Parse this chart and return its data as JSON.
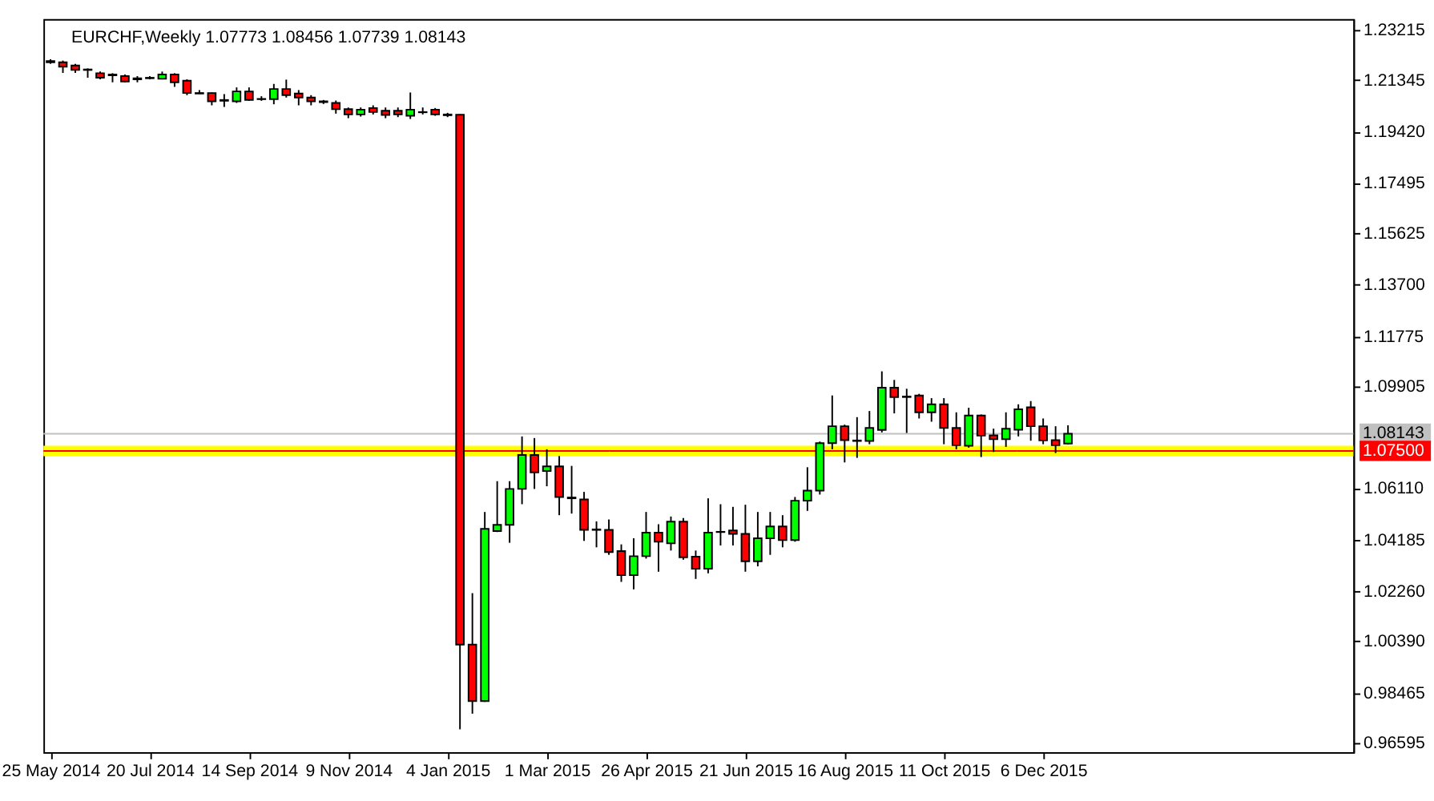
{
  "chart_data": {
    "type": "candlestick",
    "title": "EURCHF,Weekly  1.07773 1.08456 1.07739 1.08143",
    "x": [
      "2014-05-25",
      "2014-06-01",
      "2014-06-08",
      "2014-06-15",
      "2014-06-22",
      "2014-06-29",
      "2014-07-06",
      "2014-07-13",
      "2014-07-20",
      "2014-07-27",
      "2014-08-03",
      "2014-08-10",
      "2014-08-17",
      "2014-08-24",
      "2014-08-31",
      "2014-09-07",
      "2014-09-14",
      "2014-09-21",
      "2014-09-28",
      "2014-10-05",
      "2014-10-12",
      "2014-10-19",
      "2014-10-26",
      "2014-11-02",
      "2014-11-09",
      "2014-11-16",
      "2014-11-23",
      "2014-11-30",
      "2014-12-07",
      "2014-12-14",
      "2014-12-21",
      "2014-12-28",
      "2015-01-04",
      "2015-01-11",
      "2015-01-18",
      "2015-01-25",
      "2015-02-01",
      "2015-02-08",
      "2015-02-15",
      "2015-02-22",
      "2015-03-01",
      "2015-03-08",
      "2015-03-15",
      "2015-03-22",
      "2015-03-29",
      "2015-04-05",
      "2015-04-12",
      "2015-04-19",
      "2015-04-26",
      "2015-05-03",
      "2015-05-10",
      "2015-05-17",
      "2015-05-24",
      "2015-05-31",
      "2015-06-07",
      "2015-06-14",
      "2015-06-21",
      "2015-06-28",
      "2015-07-05",
      "2015-07-12",
      "2015-07-19",
      "2015-07-26",
      "2015-08-02",
      "2015-08-09",
      "2015-08-16",
      "2015-08-23",
      "2015-08-30",
      "2015-09-06",
      "2015-09-13",
      "2015-09-20",
      "2015-09-27",
      "2015-10-04",
      "2015-10-11",
      "2015-10-18",
      "2015-10-25",
      "2015-11-01",
      "2015-11-08",
      "2015-11-15",
      "2015-11-22",
      "2015-11-29",
      "2015-12-06",
      "2015-12-13",
      "2015-12-20"
    ],
    "ohlc": [
      [
        1.2205,
        1.2212,
        1.2195,
        1.2201
      ],
      [
        1.2201,
        1.2207,
        1.2161,
        1.2184
      ],
      [
        1.2189,
        1.2195,
        1.2161,
        1.2172
      ],
      [
        1.2174,
        1.2178,
        1.2143,
        1.2172
      ],
      [
        1.216,
        1.2166,
        1.2137,
        1.2143
      ],
      [
        1.2155,
        1.216,
        1.2126,
        1.2152
      ],
      [
        1.2149,
        1.2155,
        1.2126,
        1.2129
      ],
      [
        1.2141,
        1.2149,
        1.2126,
        1.2137
      ],
      [
        1.2141,
        1.2149,
        1.2137,
        1.2143
      ],
      [
        1.2139,
        1.2166,
        1.2137,
        1.2155
      ],
      [
        1.2155,
        1.216,
        1.2109,
        1.2126
      ],
      [
        1.2132,
        1.2137,
        1.2078,
        1.2086
      ],
      [
        1.2086,
        1.2097,
        1.2083,
        1.2084
      ],
      [
        1.2086,
        1.2088,
        1.204,
        1.2055
      ],
      [
        1.206,
        1.2082,
        1.2034,
        1.2057
      ],
      [
        1.2055,
        1.2107,
        1.2049,
        1.2092
      ],
      [
        1.2092,
        1.2107,
        1.2057,
        1.206
      ],
      [
        1.2064,
        1.2074,
        1.2057,
        1.2063
      ],
      [
        1.2063,
        1.212,
        1.2044,
        1.2101
      ],
      [
        1.2101,
        1.2136,
        1.2069,
        1.2078
      ],
      [
        1.2084,
        1.2097,
        1.204,
        1.2069
      ],
      [
        1.2069,
        1.2078,
        1.204,
        1.2055
      ],
      [
        1.2055,
        1.206,
        1.2045,
        1.2052
      ],
      [
        1.2049,
        1.2058,
        1.2009,
        1.2026
      ],
      [
        1.2026,
        1.2032,
        1.1992,
        1.2006
      ],
      [
        1.2006,
        1.2032,
        1.1998,
        1.2024
      ],
      [
        1.203,
        1.204,
        1.2006,
        1.2015
      ],
      [
        1.202,
        1.2032,
        1.1992,
        1.2004
      ],
      [
        1.202,
        1.2032,
        1.1996,
        1.2006
      ],
      [
        1.2001,
        1.2088,
        1.1989,
        1.2024
      ],
      [
        1.2015,
        1.2032,
        1.2006,
        1.2014
      ],
      [
        1.2024,
        1.203,
        1.2001,
        1.2006
      ],
      [
        1.2006,
        1.2012,
        1.1996,
        1.2003
      ],
      [
        1.2005,
        1.2007,
        0.9711,
        1.0027
      ],
      [
        1.0027,
        1.0219,
        0.9769,
        0.9816
      ],
      [
        0.9816,
        1.0522,
        0.9813,
        1.0459
      ],
      [
        1.0451,
        1.0637,
        1.0447,
        1.0474
      ],
      [
        1.0474,
        1.0637,
        1.0407,
        1.0608
      ],
      [
        1.0608,
        1.0804,
        1.0551,
        1.0735
      ],
      [
        1.0735,
        1.0798,
        1.0608,
        1.067
      ],
      [
        1.0675,
        1.0756,
        1.0618,
        1.0692
      ],
      [
        1.0692,
        1.0731,
        1.051,
        1.0578
      ],
      [
        1.0576,
        1.0694,
        1.0516,
        1.0573
      ],
      [
        1.0569,
        1.0597,
        1.0414,
        1.0455
      ],
      [
        1.0457,
        1.0487,
        1.039,
        1.0455
      ],
      [
        1.0455,
        1.0494,
        1.0362,
        1.0372
      ],
      [
        1.0376,
        1.0401,
        1.0261,
        1.0286
      ],
      [
        1.0286,
        1.0424,
        1.0233,
        1.0357
      ],
      [
        1.0357,
        1.0522,
        1.0348,
        1.0445
      ],
      [
        1.0445,
        1.0476,
        1.0299,
        1.0411
      ],
      [
        1.0405,
        1.0505,
        1.0378,
        1.0486
      ],
      [
        1.0486,
        1.0499,
        1.0344,
        1.0353
      ],
      [
        1.0355,
        1.0378,
        1.0272,
        1.031
      ],
      [
        1.031,
        1.0573,
        1.0293,
        1.0445
      ],
      [
        1.0448,
        1.0551,
        1.0397,
        1.0447
      ],
      [
        1.0453,
        1.0541,
        1.0397,
        1.044
      ],
      [
        1.044,
        1.0549,
        1.0299,
        1.0338
      ],
      [
        1.0338,
        1.0522,
        1.0319,
        1.0424
      ],
      [
        1.0424,
        1.0522,
        1.0362,
        1.0468
      ],
      [
        1.0468,
        1.051,
        1.039,
        1.0417
      ],
      [
        1.0417,
        1.0578,
        1.0411,
        1.0564
      ],
      [
        1.0564,
        1.0689,
        1.0526,
        1.0602
      ],
      [
        1.0602,
        1.0785,
        1.0587,
        1.0779
      ],
      [
        1.0779,
        1.0957,
        1.0756,
        1.0842
      ],
      [
        1.0842,
        1.0848,
        1.0707,
        1.079
      ],
      [
        1.0789,
        1.0876,
        1.0724,
        1.0787
      ],
      [
        1.0787,
        1.0899,
        1.0775,
        1.0836
      ],
      [
        1.0828,
        1.1047,
        1.0819,
        1.0986
      ],
      [
        1.0986,
        1.1015,
        1.089,
        1.0951
      ],
      [
        1.0953,
        1.0982,
        1.0817,
        1.0951
      ],
      [
        1.0957,
        1.0963,
        1.0871,
        1.0894
      ],
      [
        1.0894,
        1.0947,
        1.0859,
        1.0924
      ],
      [
        1.0924,
        1.0947,
        1.0775,
        1.0836
      ],
      [
        1.0836,
        1.0894,
        1.0756,
        1.0771
      ],
      [
        1.0769,
        1.0911,
        1.0762,
        1.0882
      ],
      [
        1.0882,
        1.0886,
        1.0727,
        1.0807
      ],
      [
        1.0808,
        1.0833,
        1.0746,
        1.0794
      ],
      [
        1.0794,
        1.0894,
        1.0765,
        1.0833
      ],
      [
        1.0829,
        1.0924,
        1.0804,
        1.0905
      ],
      [
        1.0913,
        1.0936,
        1.0788,
        1.0842
      ],
      [
        1.0842,
        1.0871,
        1.0775,
        1.0789
      ],
      [
        1.079,
        1.0842,
        1.0742,
        1.0771
      ],
      [
        1.07773,
        1.08456,
        1.07739,
        1.08143
      ]
    ],
    "colors": [
      "#ff0000",
      "#ff0000",
      "#ff0000",
      "#ff0000",
      "#ff0000",
      "#ff0000",
      "#ff0000",
      "#ff0000",
      "#00ff00",
      "#00ff00",
      "#ff0000",
      "#ff0000",
      "#ff0000",
      "#ff0000",
      "#ff0000",
      "#00ff00",
      "#ff0000",
      "#ff0000",
      "#00ff00",
      "#ff0000",
      "#ff0000",
      "#ff0000",
      "#ff0000",
      "#ff0000",
      "#ff0000",
      "#00ff00",
      "#ff0000",
      "#ff0000",
      "#ff0000",
      "#00ff00",
      "#ff0000",
      "#ff0000",
      "#ff0000",
      "#ff0000",
      "#ff0000",
      "#00ff00",
      "#00ff00",
      "#00ff00",
      "#00ff00",
      "#ff0000",
      "#00ff00",
      "#ff0000",
      "#ff0000",
      "#ff0000",
      "#ff0000",
      "#ff0000",
      "#ff0000",
      "#00ff00",
      "#00ff00",
      "#ff0000",
      "#00ff00",
      "#ff0000",
      "#ff0000",
      "#00ff00",
      "#ff0000",
      "#ff0000",
      "#ff0000",
      "#00ff00",
      "#00ff00",
      "#ff0000",
      "#00ff00",
      "#00ff00",
      "#00ff00",
      "#00ff00",
      "#ff0000",
      "#ff0000",
      "#00ff00",
      "#00ff00",
      "#ff0000",
      "#ff0000",
      "#ff0000",
      "#00ff00",
      "#ff0000",
      "#ff0000",
      "#00ff00",
      "#ff0000",
      "#ff0000",
      "#00ff00",
      "#00ff00",
      "#ff0000",
      "#ff0000",
      "#ff0000",
      "#00ff00"
    ],
    "xlim": [
      "2014-05-21",
      "2016-05-29"
    ],
    "xticks": [
      {
        "value": "2014-05-25",
        "label": "25 May 2014"
      },
      {
        "value": "2014-07-20",
        "label": "20 Jul 2014"
      },
      {
        "value": "2014-09-14",
        "label": "14 Sep 2014"
      },
      {
        "value": "2014-11-09",
        "label": "9 Nov 2014"
      },
      {
        "value": "2015-01-04",
        "label": "4 Jan 2015"
      },
      {
        "value": "2015-03-01",
        "label": "1 Mar 2015"
      },
      {
        "value": "2015-04-26",
        "label": "26 Apr 2015"
      },
      {
        "value": "2015-06-21",
        "label": "21 Jun 2015"
      },
      {
        "value": "2015-08-16",
        "label": "16 Aug 2015"
      },
      {
        "value": "2015-10-11",
        "label": "11 Oct 2015"
      },
      {
        "value": "2015-12-06",
        "label": "6 Dec 2015"
      }
    ],
    "ylim": [
      0.9625,
      1.2362
    ],
    "yticks": [
      1.23215,
      1.21345,
      {
        "value": 1.1942,
        "label": "1.19420"
      },
      1.17495,
      1.15625,
      {
        "value": 1.137,
        "label": "1.13700"
      },
      1.11775,
      1.09905,
      {
        "value": 1.0611,
        "label": "1.06110"
      },
      1.04185,
      {
        "value": 1.0226,
        "label": "1.02260"
      },
      {
        "value": 1.0039,
        "label": "1.00390"
      },
      0.98465,
      0.96595
    ],
    "ref_lines": [
      {
        "axis": "y",
        "value": 1.08143,
        "label": "1.08143",
        "color": "#c0c0c0"
      },
      {
        "axis": "y",
        "value": 1.075,
        "label": "1.07500",
        "color": "#ff0000"
      }
    ],
    "bands": [
      {
        "axis": "y",
        "from": 1.073,
        "to": 1.0769,
        "color": "#ffff00"
      }
    ],
    "grid": false
  }
}
